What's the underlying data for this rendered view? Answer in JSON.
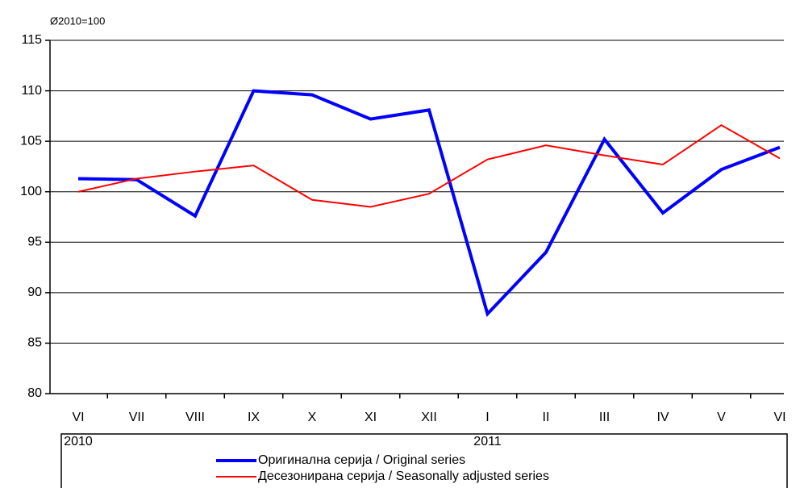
{
  "chart_data": {
    "type": "line",
    "unit_label": "Ø2010=100",
    "categories": [
      "VI",
      "VII",
      "VIII",
      "IX",
      "X",
      "XI",
      "XII",
      "I",
      "II",
      "III",
      "IV",
      "V",
      "VI"
    ],
    "x_groups": [
      {
        "label": "2010",
        "start": 0
      },
      {
        "label": "2011",
        "start": 7
      }
    ],
    "series": [
      {
        "name": "Оригинална серија / Original series",
        "color": "#0000ff",
        "width": 4,
        "values": [
          101.3,
          101.2,
          97.6,
          110.0,
          109.6,
          107.2,
          108.1,
          87.9,
          94.0,
          105.2,
          97.9,
          102.2,
          104.4
        ]
      },
      {
        "name": "Десезонирана серија / Seasonally adjusted series",
        "color": "#ff0000",
        "width": 2,
        "values": [
          100.0,
          101.3,
          102.0,
          102.6,
          99.2,
          98.5,
          99.8,
          103.2,
          104.6,
          103.6,
          102.7,
          106.6,
          103.3
        ]
      }
    ],
    "ylim": [
      80,
      115
    ],
    "yticks": [
      80,
      85,
      90,
      95,
      100,
      105,
      110,
      115
    ],
    "grid": true,
    "legend": "bottom"
  }
}
